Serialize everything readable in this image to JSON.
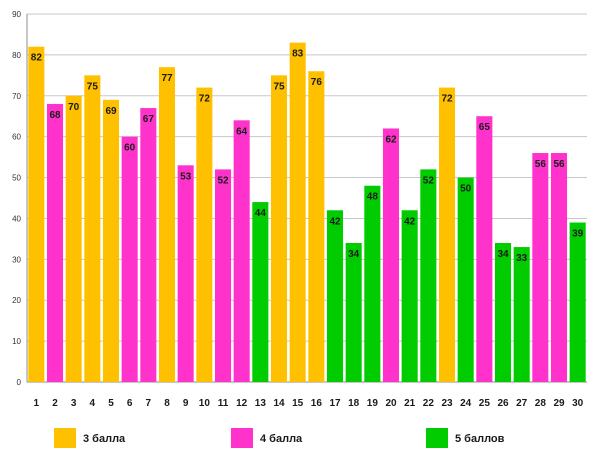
{
  "chart_data": {
    "type": "bar",
    "title": "",
    "xlabel": "",
    "ylabel": "",
    "ylim": [
      0,
      90
    ],
    "yticks": [
      0,
      10,
      20,
      30,
      40,
      50,
      60,
      70,
      80,
      90
    ],
    "grid": true,
    "legend_position": "bottom",
    "categories": [
      "1",
      "2",
      "3",
      "4",
      "5",
      "6",
      "7",
      "8",
      "9",
      "10",
      "11",
      "12",
      "13",
      "14",
      "15",
      "16",
      "17",
      "18",
      "19",
      "20",
      "21",
      "22",
      "23",
      "24",
      "25",
      "26",
      "27",
      "28",
      "29",
      "30"
    ],
    "values": [
      82,
      68,
      70,
      75,
      69,
      60,
      67,
      77,
      53,
      72,
      52,
      64,
      44,
      75,
      83,
      76,
      42,
      34,
      48,
      62,
      42,
      52,
      72,
      50,
      65,
      34,
      33,
      56,
      56,
      39
    ],
    "groups": [
      "3",
      "4",
      "3",
      "3",
      "3",
      "4",
      "4",
      "3",
      "4",
      "3",
      "4",
      "4",
      "5",
      "3",
      "3",
      "3",
      "5",
      "5",
      "5",
      "4",
      "5",
      "5",
      "3",
      "5",
      "4",
      "5",
      "5",
      "4",
      "4",
      "5"
    ],
    "legend": [
      {
        "key": "3",
        "label": "3 балла",
        "color": "#FFC000"
      },
      {
        "key": "4",
        "label": "4 балла",
        "color": "#FF33CC"
      },
      {
        "key": "5",
        "label": "5 баллов",
        "color": "#00CC00"
      }
    ]
  }
}
